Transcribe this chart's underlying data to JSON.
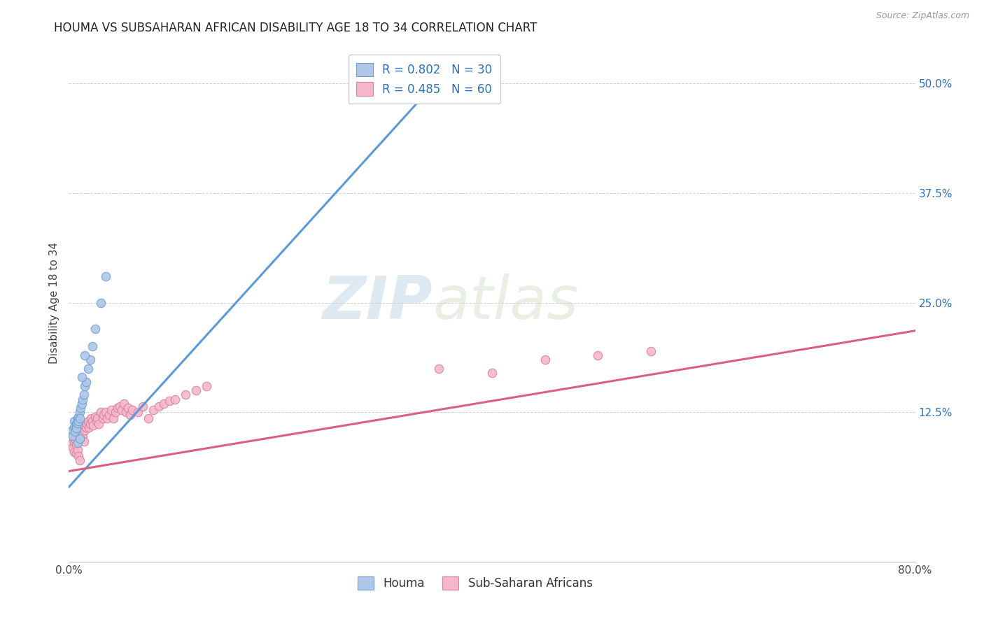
{
  "title": "HOUMA VS SUBSAHARAN AFRICAN DISABILITY AGE 18 TO 34 CORRELATION CHART",
  "source": "Source: ZipAtlas.com",
  "ylabel": "Disability Age 18 to 34",
  "ytick_vals": [
    0.125,
    0.25,
    0.375,
    0.5
  ],
  "ytick_labels": [
    "12.5%",
    "25.0%",
    "37.5%",
    "50.0%"
  ],
  "xlim": [
    0.0,
    0.8
  ],
  "ylim": [
    -0.045,
    0.545
  ],
  "watermark_zip": "ZIP",
  "watermark_atlas": "atlas",
  "legend1_label": "R = 0.802   N = 30",
  "legend2_label": "R = 0.485   N = 60",
  "legend1_color": "#aec6e8",
  "legend2_color": "#f5b8cb",
  "line1_color": "#5b9bd5",
  "line2_color": "#d96080",
  "scatter1_color": "#aec6e8",
  "scatter2_color": "#f5b8cb",
  "scatter1_edge": "#6fa0cc",
  "scatter2_edge": "#d880a0",
  "houma_label": "Houma",
  "subsaharan_label": "Sub-Saharan Africans",
  "houma_x": [
    0.003,
    0.004,
    0.005,
    0.005,
    0.006,
    0.006,
    0.007,
    0.007,
    0.008,
    0.008,
    0.009,
    0.009,
    0.01,
    0.01,
    0.011,
    0.012,
    0.013,
    0.014,
    0.015,
    0.016,
    0.018,
    0.02,
    0.022,
    0.025,
    0.03,
    0.035,
    0.015,
    0.012,
    0.008,
    0.01
  ],
  "houma_y": [
    0.105,
    0.098,
    0.115,
    0.108,
    0.11,
    0.103,
    0.112,
    0.107,
    0.118,
    0.113,
    0.12,
    0.115,
    0.125,
    0.118,
    0.13,
    0.135,
    0.14,
    0.145,
    0.155,
    0.16,
    0.175,
    0.185,
    0.2,
    0.22,
    0.25,
    0.28,
    0.19,
    0.165,
    0.09,
    0.095
  ],
  "subsaharan_x": [
    0.003,
    0.004,
    0.005,
    0.005,
    0.006,
    0.007,
    0.007,
    0.008,
    0.009,
    0.01,
    0.011,
    0.012,
    0.013,
    0.014,
    0.015,
    0.016,
    0.017,
    0.018,
    0.019,
    0.02,
    0.021,
    0.022,
    0.023,
    0.025,
    0.026,
    0.027,
    0.028,
    0.03,
    0.032,
    0.033,
    0.035,
    0.036,
    0.038,
    0.04,
    0.042,
    0.044,
    0.046,
    0.048,
    0.05,
    0.052,
    0.054,
    0.056,
    0.058,
    0.06,
    0.065,
    0.07,
    0.075,
    0.08,
    0.085,
    0.09,
    0.095,
    0.1,
    0.11,
    0.12,
    0.13,
    0.35,
    0.4,
    0.45,
    0.5,
    0.55
  ],
  "subsaharan_y": [
    0.09,
    0.085,
    0.092,
    0.08,
    0.095,
    0.088,
    0.078,
    0.082,
    0.075,
    0.07,
    0.095,
    0.102,
    0.098,
    0.092,
    0.105,
    0.108,
    0.112,
    0.115,
    0.108,
    0.112,
    0.118,
    0.115,
    0.11,
    0.12,
    0.115,
    0.118,
    0.112,
    0.125,
    0.118,
    0.122,
    0.125,
    0.118,
    0.122,
    0.128,
    0.118,
    0.125,
    0.13,
    0.132,
    0.128,
    0.135,
    0.125,
    0.13,
    0.122,
    0.128,
    0.125,
    0.132,
    0.118,
    0.128,
    0.132,
    0.135,
    0.138,
    0.14,
    0.145,
    0.15,
    0.155,
    0.175,
    0.17,
    0.185,
    0.19,
    0.195
  ],
  "line1_x": [
    0.0,
    0.35
  ],
  "line1_y": [
    0.04,
    0.505
  ],
  "line2_x": [
    0.0,
    0.8
  ],
  "line2_y": [
    0.058,
    0.218
  ],
  "title_fontsize": 12,
  "tick_fontsize": 11,
  "axis_label_fontsize": 11,
  "legend_fontsize": 12,
  "bg_color": "#ffffff",
  "grid_color": "#cccccc",
  "tick_color_right": "#3070b0",
  "source_color": "#999999"
}
